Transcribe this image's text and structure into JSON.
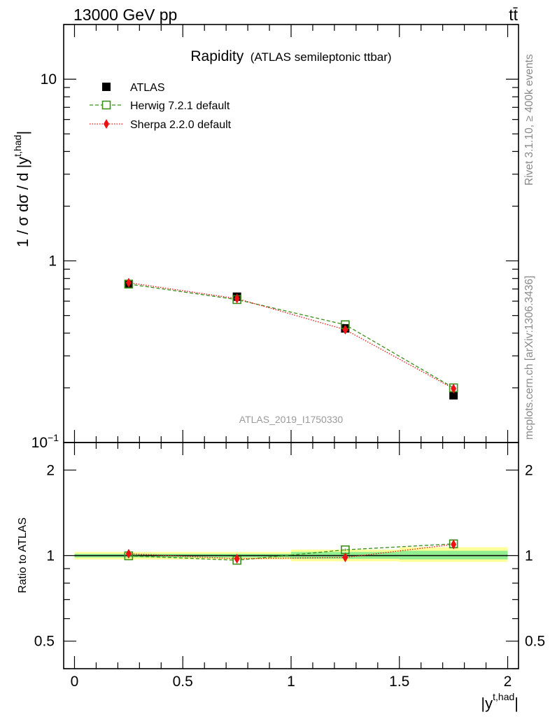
{
  "header": {
    "energy": "13000 GeV pp",
    "process": "tt̄"
  },
  "main_plot": {
    "title": "Rapidity",
    "subtitle": "(ATLAS semileptonic ttbar)",
    "ylabel": "1 / σ dσ / d |y",
    "ylabel_sup": "t,had",
    "ylabel_end": "|",
    "analysis_id": "ATLAS_2019_I1750330",
    "yticks": [
      {
        "value": 0.1,
        "base": "10",
        "exp": "−1"
      },
      {
        "value": 1,
        "base": "1",
        "exp": ""
      },
      {
        "value": 10,
        "base": "10",
        "exp": ""
      }
    ]
  },
  "ratio_plot": {
    "ylabel": "Ratio to ATLAS",
    "yticks": [
      "0.5",
      "1",
      "2"
    ],
    "ytick_values": [
      0.5,
      1,
      2
    ]
  },
  "xaxis": {
    "label": "|y",
    "label_sup": "t,had",
    "label_end": "|",
    "ticks": [
      "0",
      "0.5",
      "1",
      "1.5",
      "2"
    ],
    "tick_values": [
      0,
      0.5,
      1,
      1.5,
      2
    ]
  },
  "side_text": {
    "rivet": "Rivet 3.1.10, ≥ 400k events",
    "mcplots": "mcplots.cern.ch [arXiv:1306.3436]"
  },
  "legend": {
    "atlas": "ATLAS",
    "herwig": "Herwig 7.2.1 default",
    "sherpa": "Sherpa 2.2.0 default"
  },
  "colors": {
    "data": "#000000",
    "herwig": "#3a8f1a",
    "sherpa": "#ee1111",
    "band_inner": "#90ee90",
    "band_outer": "#ffff99"
  },
  "chart_data": {
    "type": "scatter",
    "x_edges": [
      0,
      0.5,
      1,
      1.5,
      2
    ],
    "x": [
      0.25,
      0.75,
      1.25,
      1.75
    ],
    "xlim": [
      -0.05,
      2.05
    ],
    "main": {
      "yscale": "log",
      "ylim": [
        0.1,
        20
      ],
      "series": [
        {
          "name": "ATLAS",
          "values": [
            0.745,
            0.635,
            0.425,
            0.182
          ]
        },
        {
          "name": "Herwig 7.2.1 default",
          "values": [
            0.745,
            0.612,
            0.445,
            0.2
          ]
        },
        {
          "name": "Sherpa 2.2.0 default",
          "values": [
            0.758,
            0.62,
            0.418,
            0.198
          ]
        }
      ]
    },
    "ratio": {
      "yscale": "log",
      "ylim": [
        0.4,
        2.5
      ],
      "band_inner": [
        [
          0.985,
          1.015
        ],
        [
          0.985,
          1.015
        ],
        [
          0.975,
          1.03
        ],
        [
          0.97,
          1.04
        ]
      ],
      "band_outer": [
        [
          0.97,
          1.03
        ],
        [
          0.97,
          1.03
        ],
        [
          0.955,
          1.05
        ],
        [
          0.95,
          1.07
        ]
      ],
      "series": [
        {
          "name": "Herwig 7.2.1 default",
          "values": [
            0.998,
            0.963,
            1.048,
            1.1
          ],
          "errors": [
            0.005,
            0.006,
            0.01,
            0.025
          ]
        },
        {
          "name": "Sherpa 2.2.0 default",
          "values": [
            1.015,
            0.975,
            0.985,
            1.095
          ],
          "errors": [
            0.012,
            0.015,
            0.03,
            0.04
          ]
        }
      ]
    }
  }
}
